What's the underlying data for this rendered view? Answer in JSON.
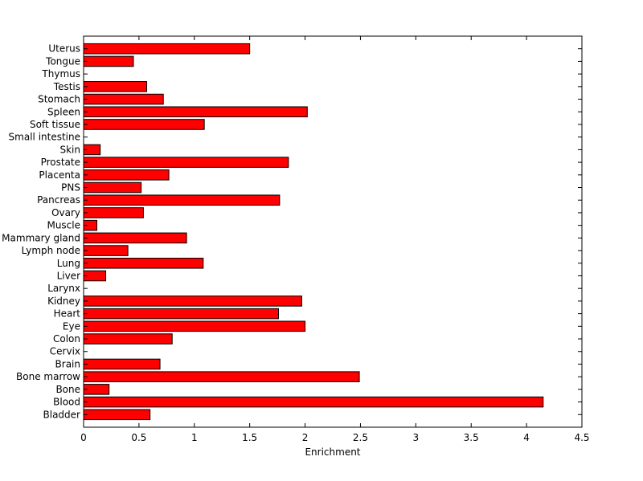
{
  "chart_data": {
    "type": "bar",
    "orientation": "horizontal",
    "title": "",
    "xlabel": "Enrichment",
    "ylabel": "",
    "xlim": [
      0,
      4.5
    ],
    "x_ticks": [
      "0",
      "0.5",
      "1",
      "1.5",
      "2",
      "2.5",
      "3",
      "3.5",
      "4",
      "4.5"
    ],
    "grid": false,
    "legend": "none",
    "bar_color": "#ff0000",
    "categories": [
      "Bladder",
      "Blood",
      "Bone",
      "Bone marrow",
      "Brain",
      "Cervix",
      "Colon",
      "Eye",
      "Heart",
      "Kidney",
      "Larynx",
      "Liver",
      "Lung",
      "Lymph node",
      "Mammary gland",
      "Muscle",
      "Ovary",
      "Pancreas",
      "PNS",
      "Placenta",
      "Prostate",
      "Skin",
      "Small intestine",
      "Soft tissue",
      "Spleen",
      "Stomach",
      "Testis",
      "Thymus",
      "Tongue",
      "Uterus"
    ],
    "values": [
      0.6,
      4.15,
      0.23,
      2.49,
      0.69,
      0,
      0.8,
      2.0,
      1.76,
      1.97,
      0,
      0.2,
      1.08,
      0.4,
      0.93,
      0.12,
      0.54,
      1.77,
      0.52,
      0.77,
      1.85,
      0.15,
      0,
      1.09,
      2.02,
      0.72,
      0.57,
      0,
      0.45,
      1.5
    ]
  }
}
